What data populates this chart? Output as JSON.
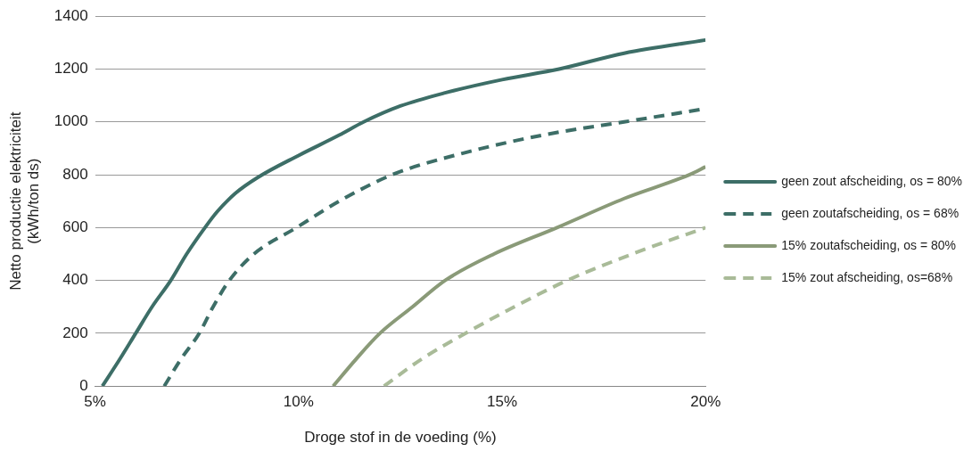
{
  "chart_data": {
    "type": "line",
    "xlabel": "Droge stof in de voeding (%)",
    "ylabel": "Netto productie elektriciteit\n(kWh/ton ds)",
    "xlim": [
      5,
      20
    ],
    "xticks": [
      {
        "value": 5,
        "label": "5%"
      },
      {
        "value": 10,
        "label": "10%"
      },
      {
        "value": 15,
        "label": "15%"
      },
      {
        "value": 20,
        "label": "20%"
      }
    ],
    "ylim": [
      0,
      1400
    ],
    "yticks": [
      0,
      200,
      400,
      600,
      800,
      1000,
      1200,
      1400
    ],
    "grid": "y",
    "legend": "right",
    "marker": "none",
    "series": [
      {
        "name": "geen zout afscheiding, os = 80%",
        "color": "#3d6e67",
        "line_style": "solid",
        "x": [
          5.18,
          5.6,
          6,
          6.4,
          6.86,
          7.25,
          7.7,
          8,
          8.45,
          9,
          10,
          11,
          11.6,
          12.5,
          13.6,
          15,
          16.4,
          18,
          20
        ],
        "values": [
          0,
          100,
          200,
          300,
          400,
          500,
          600,
          660,
          730,
          790,
          873,
          950,
          1000,
          1060,
          1110,
          1160,
          1200,
          1260,
          1310
        ]
      },
      {
        "name": "geen zoutafscheiding, os = 68%",
        "color": "#3d6e67",
        "line_style": "dashed",
        "x": [
          6.7,
          7.1,
          7.56,
          7.9,
          8.3,
          8.9,
          9.95,
          11,
          12.3,
          14,
          16,
          18,
          20
        ],
        "values": [
          0,
          100,
          200,
          300,
          400,
          500,
          600,
          700,
          800,
          880,
          950,
          1000,
          1050
        ]
      },
      {
        "name": "15% zoutafscheiding, os = 80%",
        "color": "#8a9a78",
        "line_style": "solid",
        "x": [
          10.85,
          11.4,
          12,
          12.8,
          13.6,
          14.8,
          16.35,
          18,
          19.6,
          20
        ],
        "values": [
          0,
          100,
          200,
          300,
          400,
          500,
          600,
          710,
          800,
          830
        ]
      },
      {
        "name": "15% zout afscheiding, os=68%",
        "color": "#a9bb98",
        "line_style": "dashed",
        "x": [
          12.1,
          13,
          14.1,
          15.3,
          16.6,
          18.2,
          20
        ],
        "values": [
          0,
          100,
          200,
          300,
          400,
          500,
          600
        ]
      }
    ]
  }
}
